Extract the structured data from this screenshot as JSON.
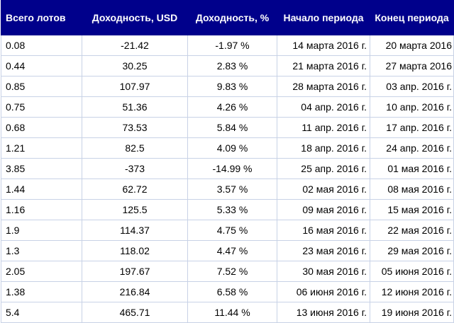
{
  "headers": {
    "lots": "Всего лотов",
    "profit_usd": "Доходность, USD",
    "profit_pct": "Доходность, %",
    "start": "Начало периода",
    "end": "Конец периода"
  },
  "colors": {
    "header_bg": "#00008b",
    "header_text": "#ffffff",
    "grid": "#c8d2e6"
  },
  "rows": [
    {
      "lots": "0.08",
      "usd": "-21.42",
      "pct": "-1.97 %",
      "start": "14 марта 2016 г.",
      "end": "20 марта 2016"
    },
    {
      "lots": "0.44",
      "usd": "30.25",
      "pct": "2.83 %",
      "start": "21 марта 2016 г.",
      "end": "27 марта 2016"
    },
    {
      "lots": "0.85",
      "usd": "107.97",
      "pct": "9.83 %",
      "start": "28 марта 2016 г.",
      "end": "03 апр. 2016 г."
    },
    {
      "lots": "0.75",
      "usd": "51.36",
      "pct": "4.26 %",
      "start": "04 апр. 2016 г.",
      "end": "10 апр. 2016 г."
    },
    {
      "lots": "0.68",
      "usd": "73.53",
      "pct": "5.84 %",
      "start": "11 апр. 2016 г.",
      "end": "17 апр. 2016 г."
    },
    {
      "lots": "1.21",
      "usd": "82.5",
      "pct": "4.09 %",
      "start": "18 апр. 2016 г.",
      "end": "24 апр. 2016 г."
    },
    {
      "lots": "3.85",
      "usd": "-373",
      "pct": "-14.99 %",
      "start": "25 апр. 2016 г.",
      "end": "01 мая 2016 г."
    },
    {
      "lots": "1.44",
      "usd": "62.72",
      "pct": "3.57 %",
      "start": "02 мая 2016 г.",
      "end": "08 мая 2016 г."
    },
    {
      "lots": "1.16",
      "usd": "125.5",
      "pct": "5.33 %",
      "start": "09 мая 2016 г.",
      "end": "15 мая 2016 г."
    },
    {
      "lots": "1.9",
      "usd": "114.37",
      "pct": "4.75 %",
      "start": "16 мая 2016 г.",
      "end": "22 мая 2016 г."
    },
    {
      "lots": "1.3",
      "usd": "118.02",
      "pct": "4.47 %",
      "start": "23 мая 2016 г.",
      "end": "29 мая 2016 г."
    },
    {
      "lots": "2.05",
      "usd": "197.67",
      "pct": "7.52 %",
      "start": "30 мая 2016 г.",
      "end": "05 июня 2016 г."
    },
    {
      "lots": "1.38",
      "usd": "216.84",
      "pct": "6.58 %",
      "start": "06 июня 2016 г.",
      "end": "12 июня 2016 г."
    },
    {
      "lots": "5.4",
      "usd": "465.71",
      "pct": "11.44 %",
      "start": "13 июня 2016 г.",
      "end": "19 июня 2016 г."
    }
  ]
}
